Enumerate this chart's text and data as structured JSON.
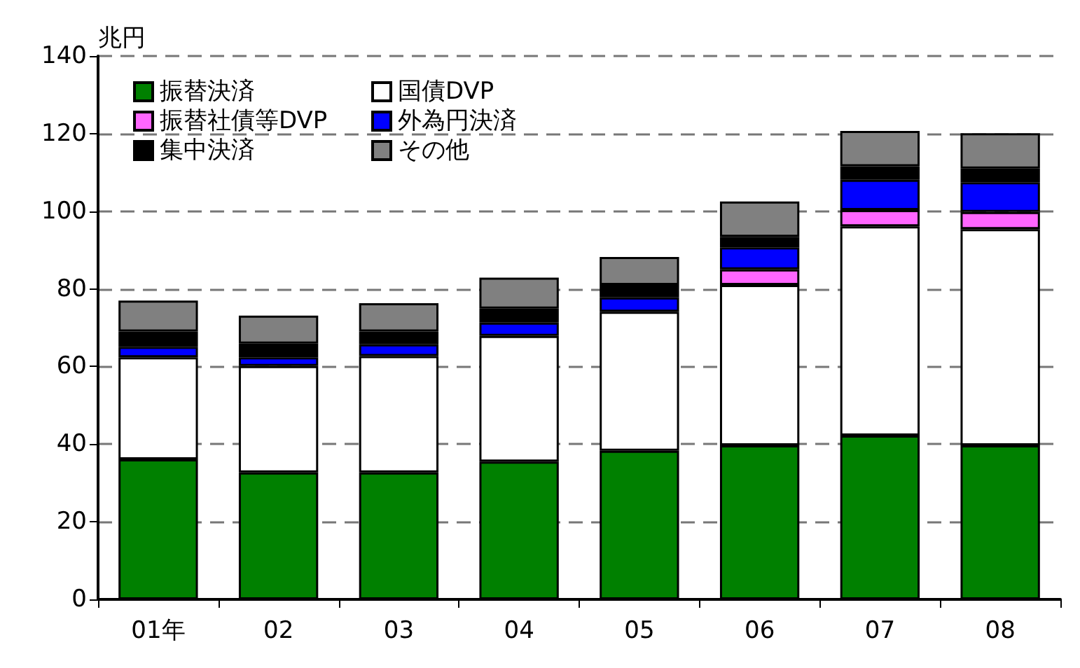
{
  "chart_data": {
    "type": "bar",
    "stacked": true,
    "ylabel": "兆円",
    "categories": [
      "01年",
      "02",
      "03",
      "04",
      "05",
      "06",
      "07",
      "08"
    ],
    "series": [
      {
        "name": "振替決済",
        "color": "#008000",
        "values": [
          36.1,
          32.7,
          32.7,
          35.5,
          38.3,
          39.7,
          42.2,
          39.7
        ]
      },
      {
        "name": "国債DVP",
        "color": "#ffffff",
        "values": [
          26.3,
          27.4,
          30.0,
          32.4,
          35.8,
          41.3,
          53.9,
          55.7
        ]
      },
      {
        "name": "振替社債等DVP",
        "color": "#ff66ff",
        "values": [
          null,
          null,
          null,
          null,
          null,
          4.0,
          4.2,
          4.4
        ]
      },
      {
        "name": "外為円決済",
        "color": "#0000ff",
        "values": [
          2.7,
          2.3,
          3.0,
          3.4,
          3.7,
          5.7,
          7.8,
          7.7
        ]
      },
      {
        "name": "集中決済",
        "color": "#000000",
        "values": [
          3.9,
          3.5,
          3.3,
          3.6,
          3.2,
          2.7,
          3.5,
          3.5
        ]
      },
      {
        "name": "その他",
        "color": "#808080",
        "values": [
          8.0,
          7.2,
          7.3,
          8.0,
          7.2,
          9.1,
          9.1,
          9.1
        ]
      }
    ],
    "ylim": [
      0,
      140
    ],
    "yticks": [
      0,
      20,
      40,
      60,
      80,
      100,
      120,
      140
    ],
    "grid": "y",
    "legend": "top left"
  }
}
